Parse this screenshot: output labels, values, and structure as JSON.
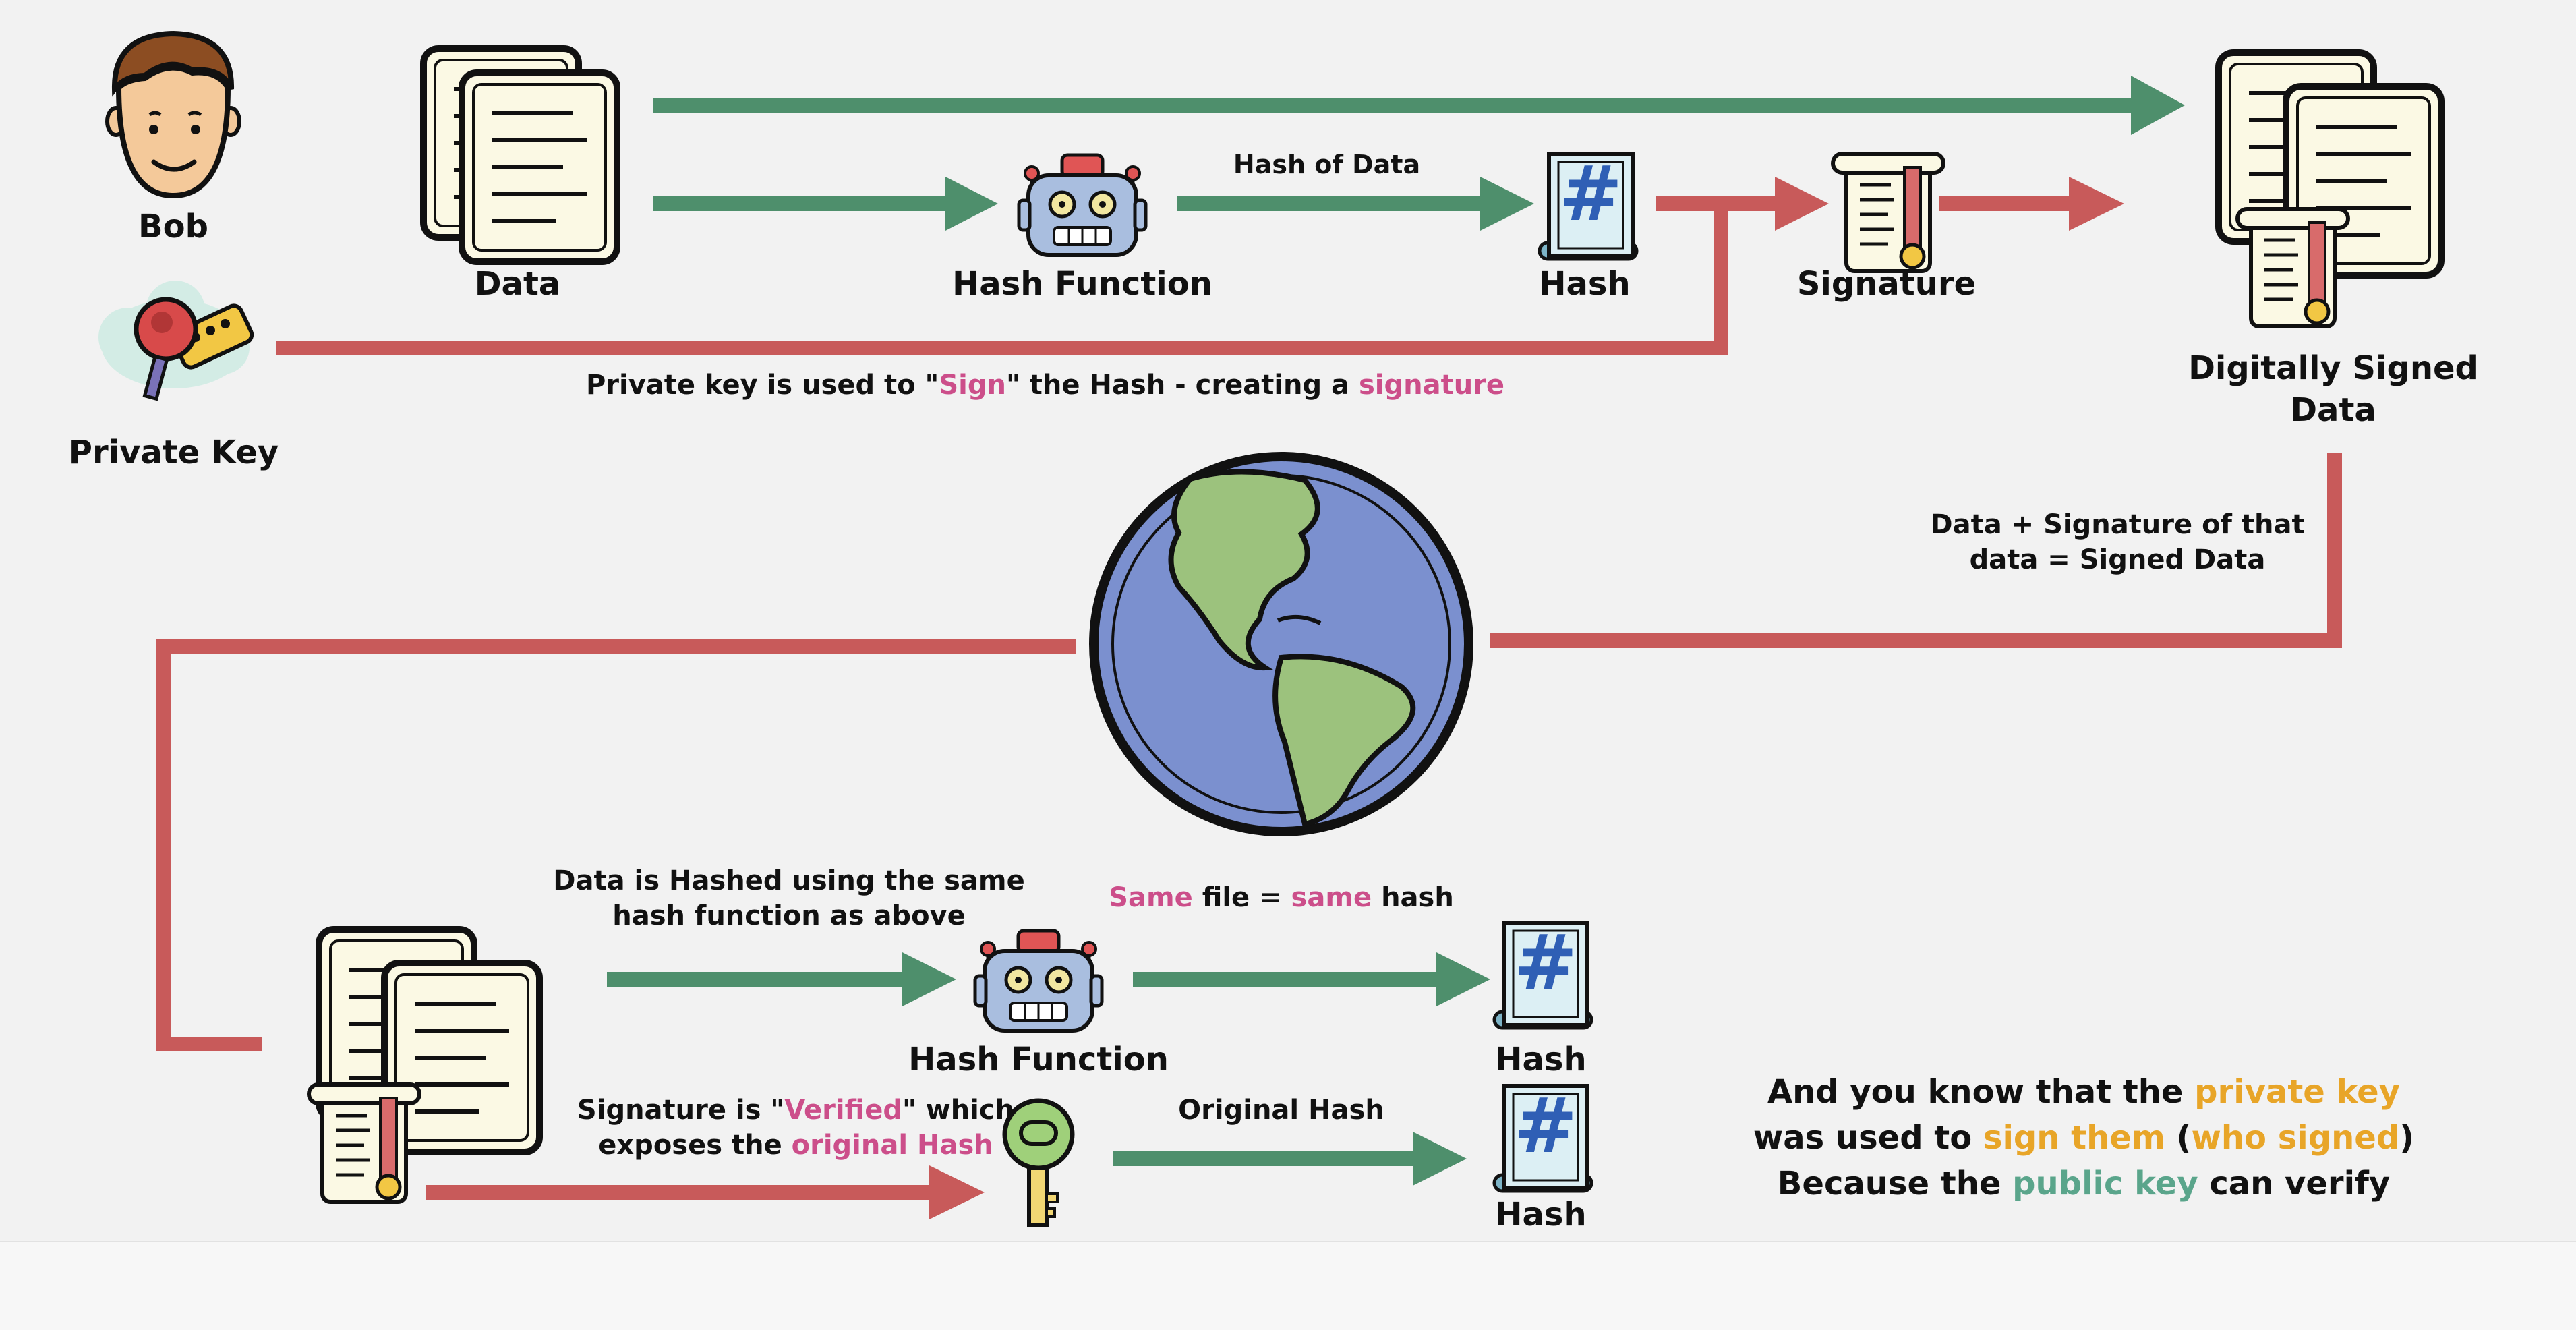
{
  "colors": {
    "green_arrow": "#4e8f6c",
    "red_arrow": "#c85a5a",
    "pink_highlight": "#cc4e8a",
    "orange_highlight": "#e8a528",
    "teal_highlight": "#5aa58b",
    "paper": "#fbf9e4",
    "globe_ocean": "#7b90cf",
    "globe_land": "#9cc27d"
  },
  "icons": [
    "person-icon",
    "document-stack-icon",
    "robot-icon",
    "hash-scroll-icon",
    "certificate-icon",
    "keychain-icon",
    "globe-icon",
    "key-icon"
  ],
  "top": {
    "bob_label": "Bob",
    "private_key_label": "Private Key",
    "data_label": "Data",
    "hash_function_label": "Hash Function",
    "hash_of_data_label": "Hash of Data",
    "hash_label": "Hash",
    "signature_label": "Signature",
    "signed_label_line1": "Digitally Signed",
    "signed_label_line2": "Data",
    "sign_caption": {
      "p1": "Private key is used to \"",
      "sign": "Sign",
      "p2": "\" the Hash  - creating a ",
      "signature": "signature"
    }
  },
  "middle": {
    "caption_line1": "Data + Signature of that",
    "caption_line2": "data = Signed Data"
  },
  "bottom": {
    "hashed_caption_line1": "Data is Hashed using the same",
    "hashed_caption_line2": "hash function as above",
    "same_caption": {
      "same1": "Same",
      "mid": " file = ",
      "same2": "same",
      "end": " hash"
    },
    "hash_function_label": "Hash Function",
    "hash_label_1": "Hash",
    "hash_label_2": "Hash",
    "original_hash_label": "Original Hash",
    "verified_caption": {
      "p1": "Signature is \"",
      "verified": "Verified",
      "p2": "\" which",
      "p3": "exposes the ",
      "original_hash": "original Hash"
    }
  },
  "summary": {
    "l1a": "And you know that the ",
    "l1b": "private key",
    "l2a": "was used to ",
    "l2b": "sign them",
    "l2c": " (",
    "l2d": "who signed",
    "l2e": ")",
    "l3a": "Because the ",
    "l3b": "public key",
    "l3c": " can verify"
  }
}
